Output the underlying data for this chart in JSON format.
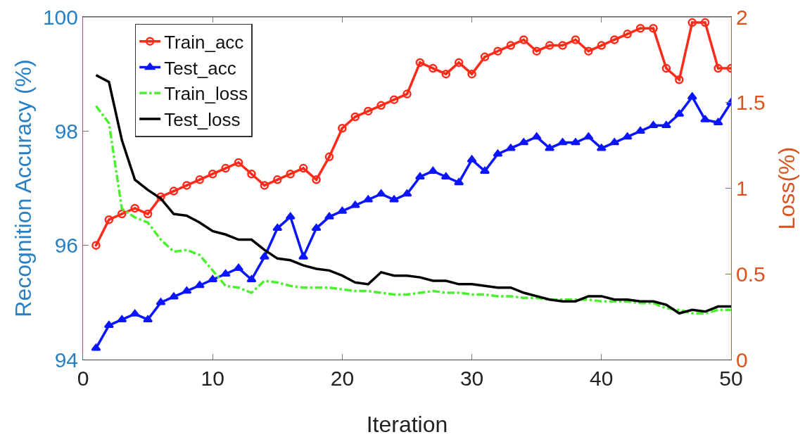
{
  "chart_data": {
    "type": "line",
    "xlabel": "Iteration",
    "ylabel": "Recognition Accuracy (%)",
    "y2label": "Loss(%)",
    "x": [
      1,
      2,
      3,
      4,
      5,
      6,
      7,
      8,
      9,
      10,
      11,
      12,
      13,
      14,
      15,
      16,
      17,
      18,
      19,
      20,
      21,
      22,
      23,
      24,
      25,
      26,
      27,
      28,
      29,
      30,
      31,
      32,
      33,
      34,
      35,
      36,
      37,
      38,
      39,
      40,
      41,
      42,
      43,
      44,
      45,
      46,
      47,
      48,
      49,
      50
    ],
    "xlim": [
      0,
      50
    ],
    "xticks": [
      0,
      10,
      20,
      30,
      40,
      50
    ],
    "ylim": [
      94,
      100
    ],
    "yticks": [
      94,
      96,
      98,
      100
    ],
    "y2lim": [
      0,
      2
    ],
    "y2ticks": [
      0,
      0.5,
      1,
      1.5,
      2
    ],
    "grid": false,
    "legend": "top left",
    "series": [
      {
        "name": "Train_acc",
        "color": "#ff2a1a",
        "marker": "circle",
        "line_style": "solid",
        "values": [
          96.0,
          96.45,
          96.55,
          96.65,
          96.55,
          96.85,
          96.95,
          97.05,
          97.15,
          97.25,
          97.35,
          97.45,
          97.25,
          97.05,
          97.15,
          97.25,
          97.35,
          97.15,
          97.55,
          98.05,
          98.25,
          98.35,
          98.45,
          98.55,
          98.65,
          99.2,
          99.1,
          99.0,
          99.2,
          99.0,
          99.3,
          99.4,
          99.5,
          99.6,
          99.4,
          99.5,
          99.5,
          99.6,
          99.4,
          99.5,
          99.6,
          99.7,
          99.8,
          99.8,
          99.1,
          98.9,
          99.9,
          99.9,
          99.1,
          99.1
        ]
      },
      {
        "name": "Test_acc",
        "color": "#0a14ff",
        "marker": "triangle",
        "line_style": "solid",
        "values": [
          94.2,
          94.6,
          94.7,
          94.8,
          94.7,
          95.0,
          95.1,
          95.2,
          95.3,
          95.4,
          95.5,
          95.6,
          95.4,
          95.8,
          96.3,
          96.5,
          95.8,
          96.3,
          96.5,
          96.6,
          96.7,
          96.8,
          96.9,
          96.8,
          96.9,
          97.2,
          97.3,
          97.2,
          97.1,
          97.5,
          97.3,
          97.6,
          97.7,
          97.8,
          97.9,
          97.7,
          97.8,
          97.8,
          97.9,
          97.7,
          97.8,
          97.9,
          98.0,
          98.1,
          98.1,
          98.3,
          98.6,
          98.2,
          98.15,
          98.5
        ]
      },
      {
        "name": "Train_loss",
        "color": "#4cf031",
        "marker": "none",
        "line_style": "dashed",
        "axis": "y2",
        "values": [
          1.48,
          1.38,
          0.88,
          0.83,
          0.8,
          0.7,
          0.63,
          0.64,
          0.61,
          0.52,
          0.43,
          0.42,
          0.39,
          0.46,
          0.45,
          0.43,
          0.42,
          0.42,
          0.42,
          0.41,
          0.4,
          0.4,
          0.39,
          0.38,
          0.38,
          0.39,
          0.4,
          0.39,
          0.39,
          0.38,
          0.38,
          0.37,
          0.37,
          0.36,
          0.36,
          0.35,
          0.35,
          0.35,
          0.35,
          0.34,
          0.34,
          0.34,
          0.33,
          0.33,
          0.3,
          0.29,
          0.27,
          0.27,
          0.29,
          0.29
        ]
      },
      {
        "name": "Test_loss",
        "color": "#000000",
        "marker": "none",
        "line_style": "solid",
        "axis": "y2",
        "values": [
          1.66,
          1.62,
          1.28,
          1.05,
          0.99,
          0.94,
          0.85,
          0.84,
          0.8,
          0.75,
          0.73,
          0.7,
          0.7,
          0.64,
          0.59,
          0.58,
          0.55,
          0.53,
          0.52,
          0.49,
          0.45,
          0.44,
          0.51,
          0.49,
          0.49,
          0.48,
          0.46,
          0.46,
          0.44,
          0.44,
          0.43,
          0.42,
          0.42,
          0.39,
          0.37,
          0.35,
          0.34,
          0.34,
          0.37,
          0.37,
          0.35,
          0.35,
          0.34,
          0.34,
          0.32,
          0.27,
          0.29,
          0.28,
          0.31,
          0.31
        ]
      }
    ]
  }
}
